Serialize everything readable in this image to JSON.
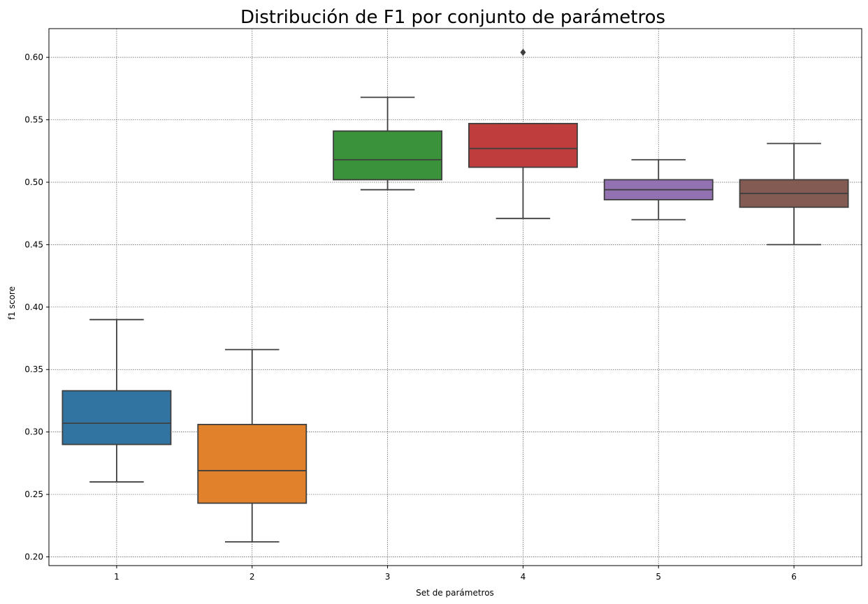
{
  "chart_data": {
    "type": "box",
    "title": "Distribución de F1 por conjunto de parámetros",
    "xlabel": "Set de parámetros",
    "ylabel": "f1 score",
    "categories": [
      "1",
      "2",
      "3",
      "4",
      "5",
      "6"
    ],
    "ylim": [
      0.193,
      0.623
    ],
    "yticks": [
      0.2,
      0.25,
      0.3,
      0.35,
      0.4,
      0.45,
      0.5,
      0.55,
      0.6
    ],
    "ytick_labels": [
      "0.20",
      "0.25",
      "0.30",
      "0.35",
      "0.40",
      "0.45",
      "0.50",
      "0.55",
      "0.60"
    ],
    "grid": true,
    "boxes": [
      {
        "category": "1",
        "color": "#3274a1",
        "whisker_low": 0.26,
        "q1": 0.29,
        "median": 0.307,
        "q3": 0.333,
        "whisker_high": 0.39,
        "outliers": []
      },
      {
        "category": "2",
        "color": "#e1812c",
        "whisker_low": 0.212,
        "q1": 0.243,
        "median": 0.269,
        "q3": 0.306,
        "whisker_high": 0.366,
        "outliers": []
      },
      {
        "category": "3",
        "color": "#3a923a",
        "whisker_low": 0.494,
        "q1": 0.502,
        "median": 0.518,
        "q3": 0.541,
        "whisker_high": 0.568,
        "outliers": []
      },
      {
        "category": "4",
        "color": "#c03d3e",
        "whisker_low": 0.471,
        "q1": 0.512,
        "median": 0.527,
        "q3": 0.547,
        "whisker_high": 0.547,
        "outliers": [
          0.604
        ]
      },
      {
        "category": "5",
        "color": "#9372b2",
        "whisker_low": 0.47,
        "q1": 0.486,
        "median": 0.494,
        "q3": 0.502,
        "whisker_high": 0.518,
        "outliers": []
      },
      {
        "category": "6",
        "color": "#845b53",
        "whisker_low": 0.45,
        "q1": 0.48,
        "median": 0.491,
        "q3": 0.502,
        "whisker_high": 0.531,
        "outliers": []
      }
    ]
  }
}
